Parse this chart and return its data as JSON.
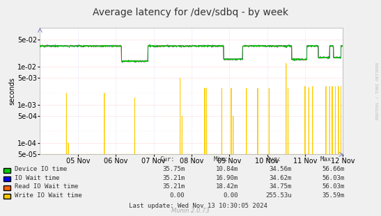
{
  "title": "Average latency for /dev/sdbq - by week",
  "ylabel": "seconds",
  "background_color": "#f0f0f0",
  "plot_bg_color": "#ffffff",
  "grid_color_h": "#ffb0b0",
  "grid_color_v": "#d0d0ff",
  "ylim_min": 5e-05,
  "ylim_max": 0.1,
  "x_tick_labels": [
    "05 Nov",
    "06 Nov",
    "07 Nov",
    "08 Nov",
    "09 Nov",
    "10 Nov",
    "11 Nov",
    "12 Nov"
  ],
  "x_tick_positions": [
    1,
    2,
    3,
    4,
    5,
    6,
    7,
    8
  ],
  "series_colors": {
    "device_io": "#00cc00",
    "io_wait": "#0000ff",
    "read_io_wait": "#ff6600",
    "write_io_wait": "#ffcc00"
  },
  "legend_labels": [
    "Device IO time",
    "IO Wait time",
    "Read IO Wait time",
    "Write IO Wait time"
  ],
  "legend_colors": [
    "#00cc00",
    "#0000ff",
    "#ff6600",
    "#ffcc00"
  ],
  "cur_values": [
    "35.75m",
    "35.21m",
    "35.21m",
    "0.00"
  ],
  "min_values": [
    "10.84m",
    "16.90m",
    "18.42m",
    "0.00"
  ],
  "avg_values": [
    "34.56m",
    "34.62m",
    "34.75m",
    "255.53u"
  ],
  "max_values": [
    "56.66m",
    "56.03m",
    "56.03m",
    "35.59m"
  ],
  "watermark": "Munin 2.0.73",
  "rrdtool_label": "RRDTOOL / TOBI OETIKER",
  "title_fontsize": 10,
  "axis_fontsize": 7,
  "legend_fontsize": 7
}
